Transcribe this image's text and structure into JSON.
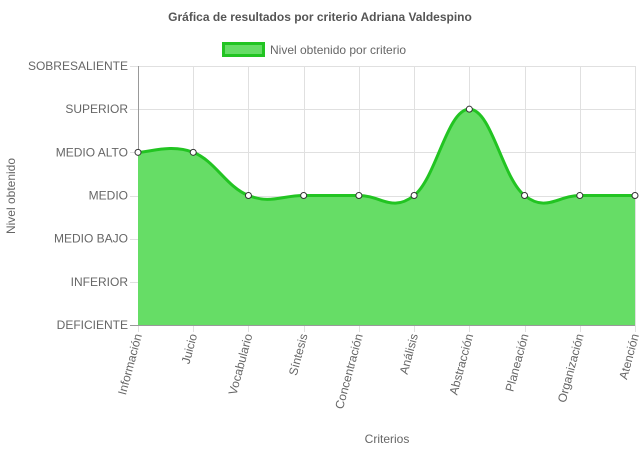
{
  "chart_data": {
    "type": "area",
    "title": "Gráfica de resultados por criterio Adriana Valdespino",
    "xlabel": "Criterios",
    "ylabel": "Nivel obtenido",
    "y_levels": [
      "DEFICIENTE",
      "INFERIOR",
      "MEDIO BAJO",
      "MEDIO",
      "MEDIO ALTO",
      "SUPERIOR",
      "SOBRESALIENTE"
    ],
    "ylim": [
      0,
      6
    ],
    "categories": [
      "Información",
      "Juicio",
      "Vocabulario",
      "Síntesis",
      "Concentración",
      "Análisis",
      "Abstracción",
      "Planeación",
      "Organización",
      "Atención"
    ],
    "series": [
      {
        "name": "Nivel obtenido por criterio",
        "values": [
          4,
          4,
          3,
          3,
          3,
          3,
          5,
          3,
          3,
          3
        ],
        "fill_color": "#66dd66",
        "line_color": "#22c422"
      }
    ],
    "legend_position": "top",
    "grid": true,
    "curve": "smooth"
  }
}
